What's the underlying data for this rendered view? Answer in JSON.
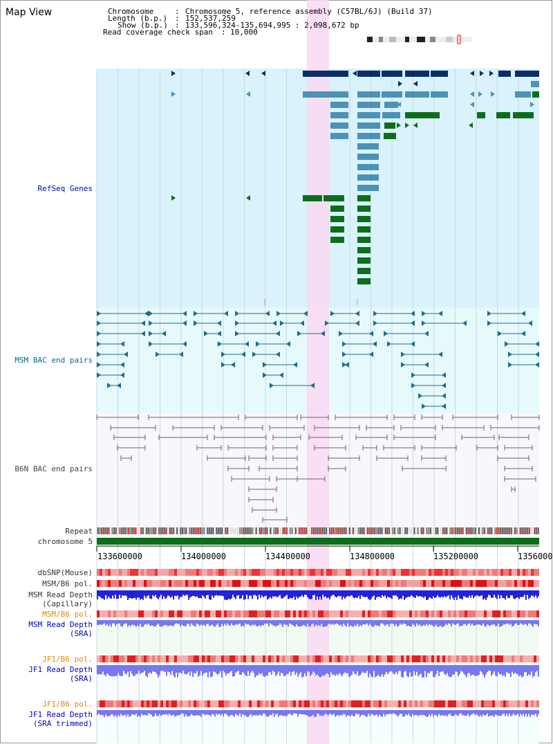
{
  "title": "Map View",
  "info": {
    "chromosome_label": "Chromosome",
    "chromosome_value": "Chromosome 5, reference assembly (C57BL/6J) (Build 37)",
    "length_label": "Length (b.p.)",
    "length_value": "152,537,259",
    "show_label": "Show (b.p.)",
    "show_value": "133,596,324-135,694,995 : 2,098,672 bp",
    "span_label": "Read coverage check span",
    "span_value": "10,000"
  },
  "tracks": {
    "refseq": "RefSeq Genes",
    "msm_bac": "MSM BAC end pairs",
    "b6n_bac": "B6N BAC end pairs",
    "repeat": "Repeat",
    "chromosome": "chromosome 5",
    "dbsnp": "dbSNP(Mouse)",
    "msm_b6_pol_1": "MSM/B6 pol.",
    "msm_depth_cap_1": "MSM Read Depth",
    "msm_depth_cap_2": "(Capillary)",
    "msm_b6_pol_2": "MSM/B6 pol.",
    "msm_depth_sra_1": "MSM Read Depth",
    "msm_depth_sra_2": "(SRA)",
    "jf1_pol_1": "JF1/B6 pol.",
    "jf1_depth_1": "JF1 Read Depth",
    "jf1_depth_1b": "(SRA)",
    "jf1_pol_2": "JF1/B6 pol.",
    "jf1_depth_2": "JF1 Read Depth",
    "jf1_depth_2b": "(SRA trimmed)"
  },
  "axis": {
    "ticks": [
      "133600000",
      "134000000",
      "134400000",
      "134800000",
      "135200000",
      "1356000"
    ]
  },
  "colors": {
    "gene_bg": "#d9f2fb",
    "msm_bg": "#e6f9fb",
    "highlight": "#f9d9f2",
    "dark_gene": "#0a2f66",
    "mid_gene": "#4a92b8",
    "green_gene": "#0d6e1a",
    "msm_line": "#1d6d8c",
    "b6n_line": "#666666",
    "chrom_bar": "#0d6e1a",
    "depth_blue": "#2222dd",
    "depth_light": "#7777ee"
  }
}
